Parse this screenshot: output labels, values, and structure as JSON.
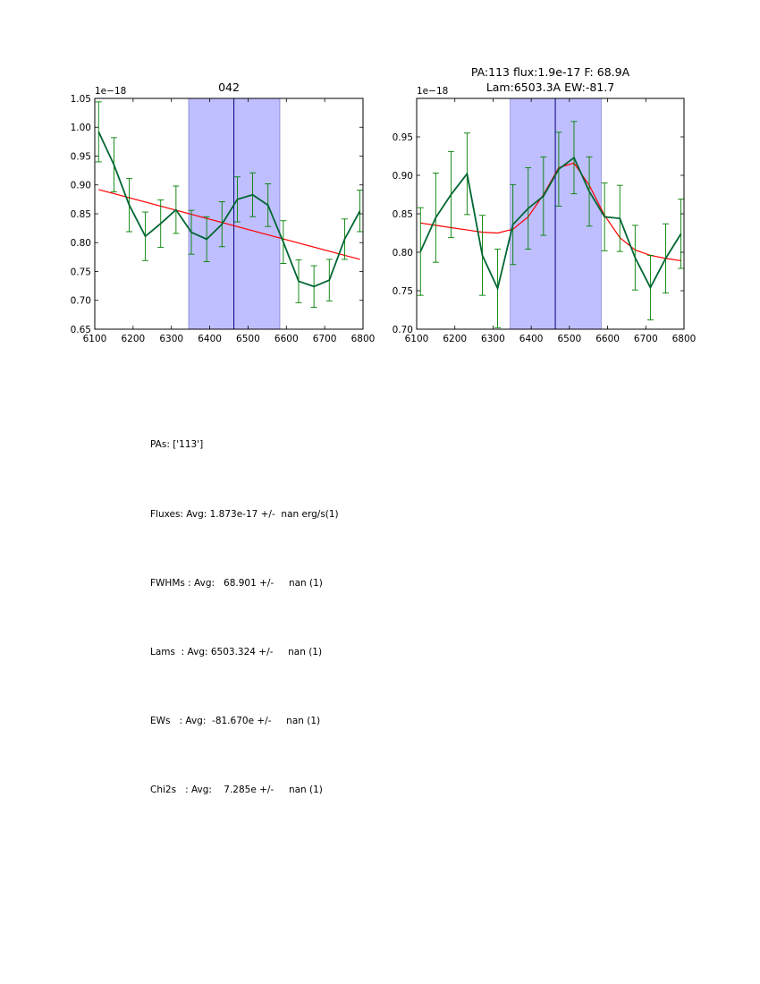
{
  "chart_data": [
    {
      "type": "line",
      "title": "042",
      "title_line2": "",
      "offset_text": "1e−18",
      "xlabel": "",
      "ylabel": "",
      "xlim": [
        6100,
        6800
      ],
      "ylim": [
        0.65,
        1.05
      ],
      "xticks": [
        6100,
        6200,
        6300,
        6400,
        6500,
        6600,
        6700,
        6800
      ],
      "yticks": [
        0.65,
        0.7,
        0.75,
        0.8,
        0.85,
        0.9,
        0.95,
        1.0,
        1.05
      ],
      "ytick_labels": [
        "0.65",
        "0.70",
        "0.75",
        "0.80",
        "0.85",
        "0.90",
        "0.95",
        "1.00",
        "1.05"
      ],
      "span": [
        6345,
        6583
      ],
      "vline": 6463,
      "colors": {
        "data": "#006633",
        "error": "#008000",
        "fit": "#ff0000",
        "span": "#bfbfff",
        "vline": "#000080"
      },
      "series": [
        {
          "name": "data",
          "x": [
            6110,
            6150,
            6190,
            6232,
            6272,
            6312,
            6352,
            6392,
            6432,
            6472,
            6512,
            6552,
            6592,
            6632,
            6672,
            6712,
            6752,
            6792
          ],
          "y": [
            0.992,
            0.935,
            0.865,
            0.811,
            0.833,
            0.857,
            0.818,
            0.806,
            0.832,
            0.875,
            0.883,
            0.865,
            0.801,
            0.733,
            0.724,
            0.735,
            0.806,
            0.855
          ],
          "err": [
            0.052,
            0.047,
            0.046,
            0.042,
            0.041,
            0.041,
            0.038,
            0.039,
            0.039,
            0.039,
            0.038,
            0.037,
            0.037,
            0.037,
            0.036,
            0.036,
            0.035,
            0.036
          ]
        },
        {
          "name": "fit",
          "x": [
            6110,
            6792
          ],
          "y": [
            0.892,
            0.771
          ]
        }
      ]
    },
    {
      "type": "line",
      "title": "PA:113 flux:1.9e-17 F: 68.9A",
      "title_line2": "Lam:6503.3A EW:-81.7",
      "offset_text": "1e−18",
      "xlabel": "",
      "ylabel": "",
      "xlim": [
        6100,
        6800
      ],
      "ylim": [
        0.7,
        1.0
      ],
      "xticks": [
        6100,
        6200,
        6300,
        6400,
        6500,
        6600,
        6700,
        6800
      ],
      "yticks": [
        0.7,
        0.75,
        0.8,
        0.85,
        0.9,
        0.95
      ],
      "ytick_labels": [
        "0.70",
        "0.75",
        "0.80",
        "0.85",
        "0.90",
        "0.95"
      ],
      "span": [
        6345,
        6583
      ],
      "vline": 6463,
      "colors": {
        "data": "#006633",
        "error": "#008000",
        "fit": "#ff0000",
        "span": "#bfbfff",
        "vline": "#000080"
      },
      "series": [
        {
          "name": "data",
          "x": [
            6110,
            6150,
            6190,
            6232,
            6272,
            6312,
            6352,
            6392,
            6432,
            6472,
            6512,
            6552,
            6592,
            6632,
            6672,
            6712,
            6752,
            6792
          ],
          "y": [
            0.801,
            0.845,
            0.875,
            0.902,
            0.796,
            0.753,
            0.836,
            0.857,
            0.873,
            0.908,
            0.923,
            0.879,
            0.846,
            0.844,
            0.793,
            0.754,
            0.792,
            0.824
          ],
          "err": [
            0.057,
            0.058,
            0.056,
            0.053,
            0.052,
            0.051,
            0.052,
            0.053,
            0.051,
            0.048,
            0.047,
            0.045,
            0.044,
            0.043,
            0.042,
            0.042,
            0.045,
            0.045
          ]
        },
        {
          "name": "fit",
          "x": [
            6110,
            6150,
            6190,
            6232,
            6272,
            6312,
            6352,
            6392,
            6432,
            6472,
            6512,
            6552,
            6592,
            6632,
            6672,
            6712,
            6752,
            6792
          ],
          "y": [
            0.838,
            0.835,
            0.832,
            0.829,
            0.826,
            0.825,
            0.83,
            0.846,
            0.875,
            0.91,
            0.916,
            0.887,
            0.848,
            0.819,
            0.803,
            0.796,
            0.792,
            0.789
          ]
        }
      ]
    }
  ],
  "stats": {
    "pas": "PAs: ['113']",
    "fluxes": "Fluxes: Avg: 1.873e-17 +/-  nan erg/s(1)",
    "fwhms": "FWHMs : Avg:   68.901 +/-     nan (1)",
    "lams": "Lams  : Avg: 6503.324 +/-     nan (1)",
    "ews": "EWs   : Avg:  -81.670e +/-     nan (1)",
    "chi2s": "Chi2s   : Avg:    7.285e +/-     nan (1)"
  }
}
